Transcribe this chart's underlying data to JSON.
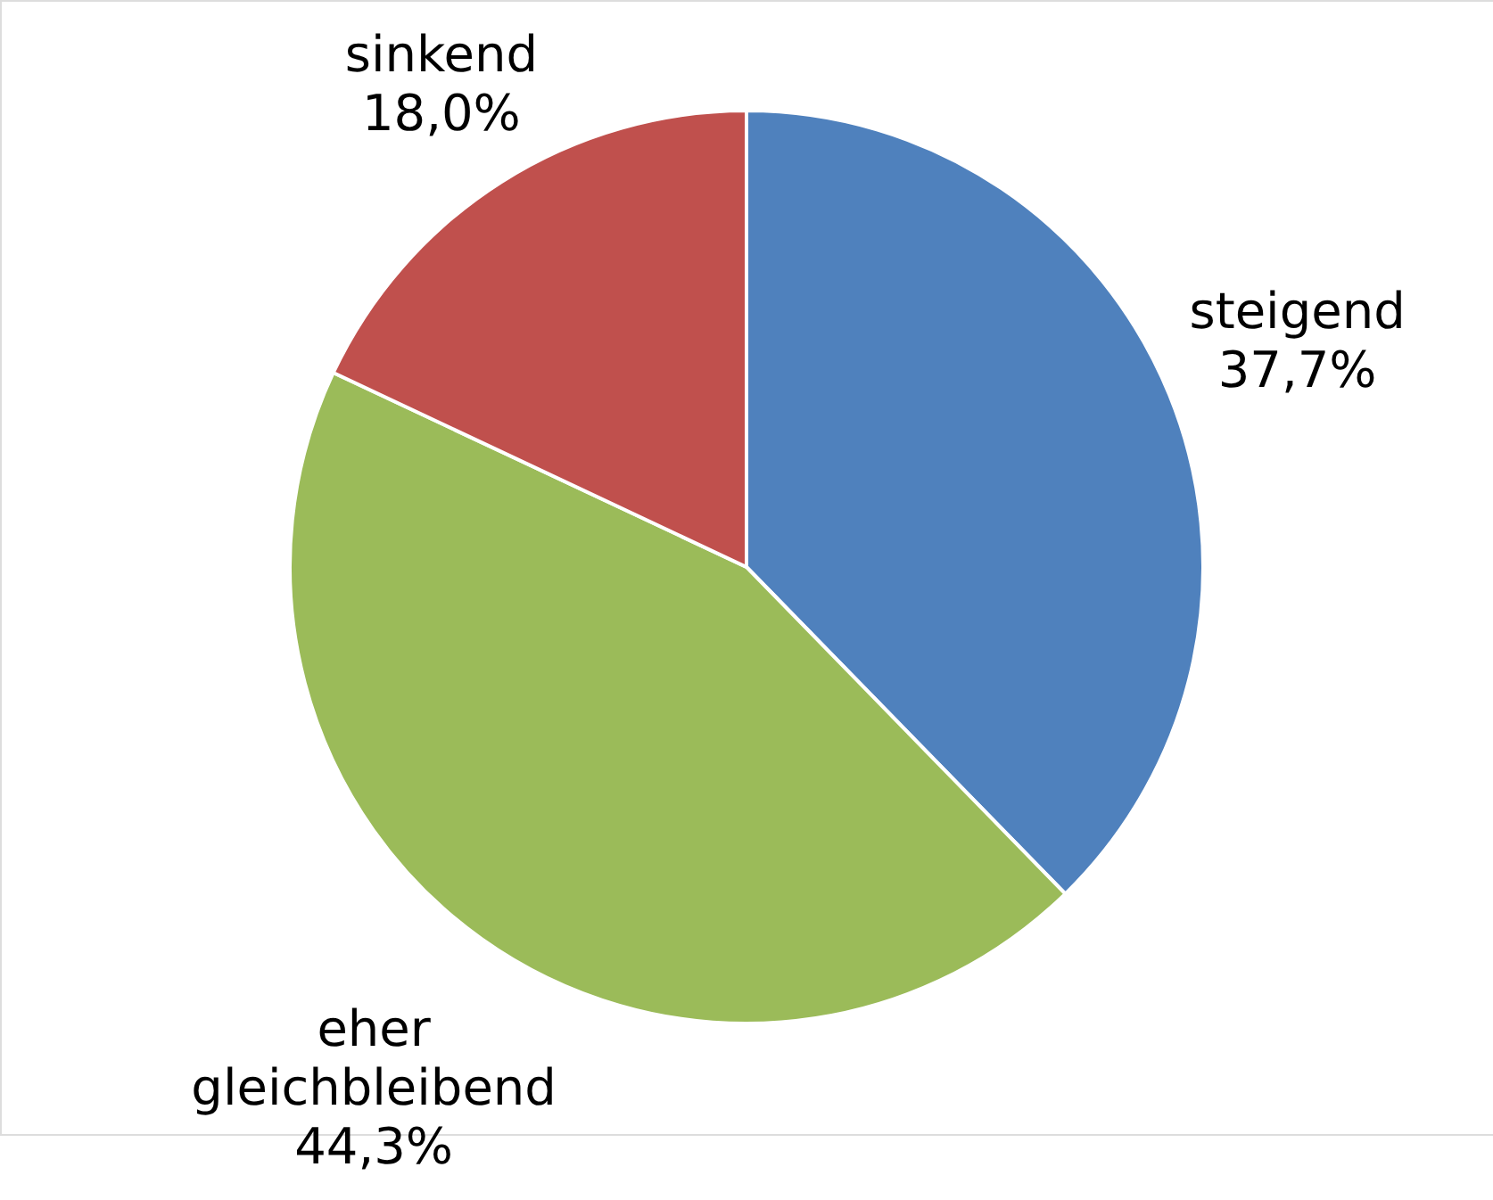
{
  "chart_data": {
    "type": "pie",
    "categories": [
      "steigend",
      "eher gleichbleibend",
      "sinkend"
    ],
    "values": [
      37.7,
      44.3,
      18.0
    ],
    "value_labels": [
      "37,7%",
      "44,3%",
      "18,0%"
    ],
    "colors": [
      "#4f81bd",
      "#9bbb59",
      "#c0504d"
    ]
  }
}
